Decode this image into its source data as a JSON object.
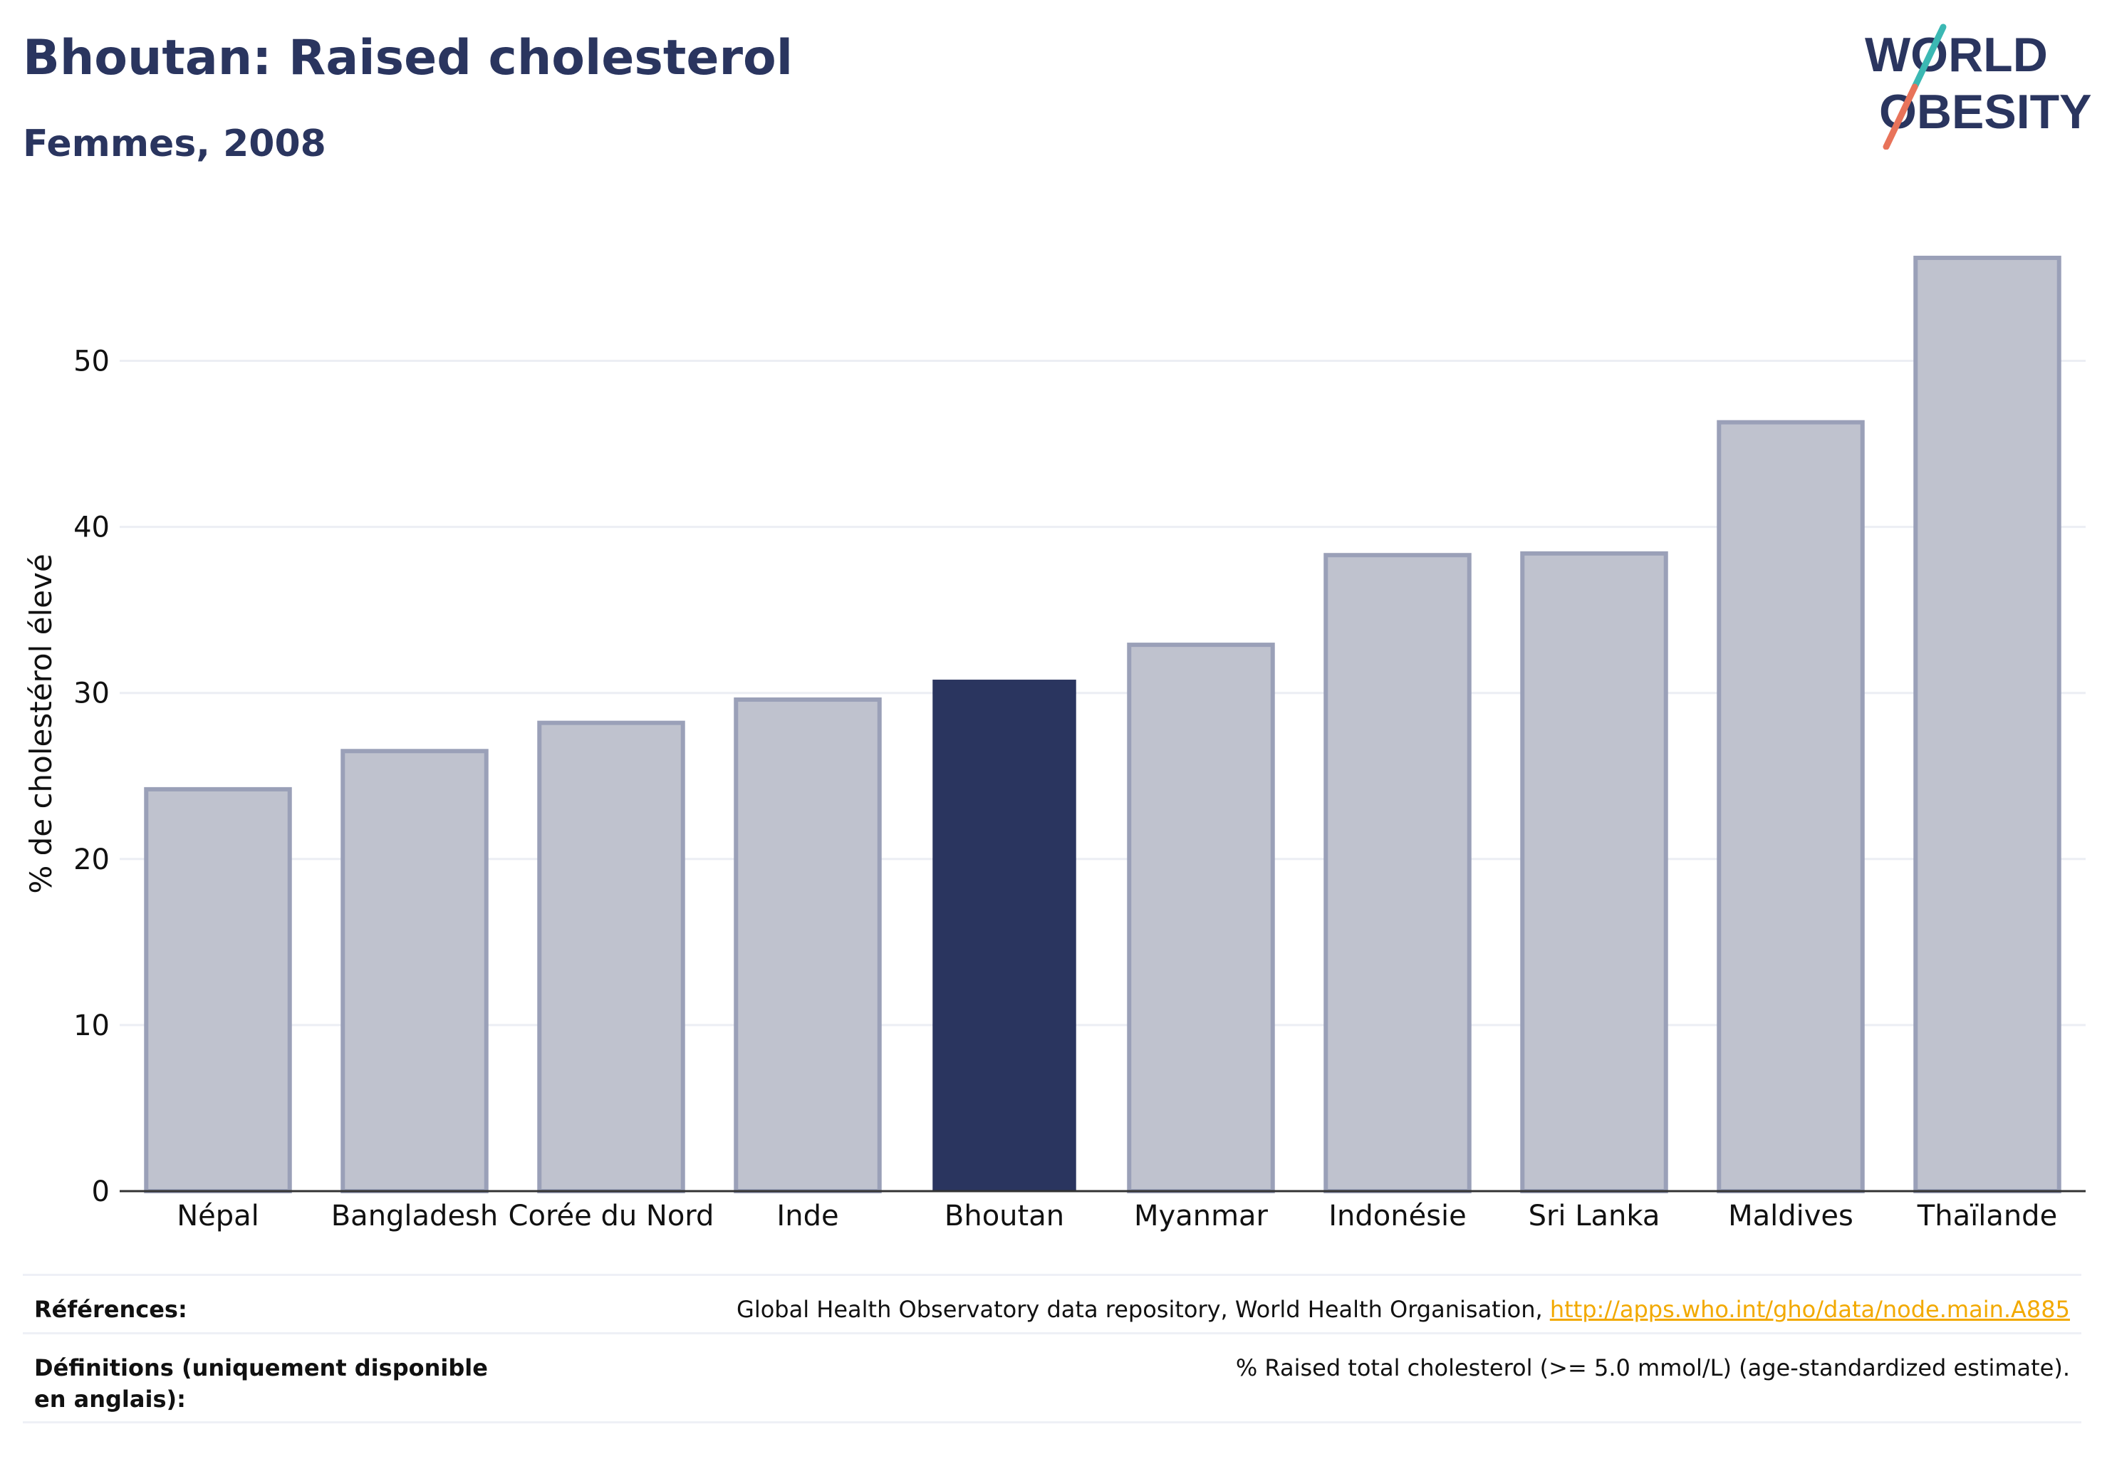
{
  "header": {
    "title": "Bhoutan: Raised cholesterol",
    "subtitle": "Femmes, 2008",
    "logo_line1": "WORLD",
    "logo_line2": "OBESITY"
  },
  "colors": {
    "navy": "#2a355f",
    "bar_fill": "#bfc2ce",
    "bar_stroke": "#9aa0b8",
    "highlight": "#2a355f",
    "logo_teal": "#3bb8b3",
    "logo_coral": "#e8735a",
    "link": "#f2a900"
  },
  "chart_data": {
    "type": "bar",
    "categories": [
      "Népal",
      "Bangladesh",
      "Corée du Nord",
      "Inde",
      "Bhoutan",
      "Myanmar",
      "Indonésie",
      "Sri Lanka",
      "Maldives",
      "Thaïlande"
    ],
    "values": [
      24.2,
      26.5,
      28.2,
      29.6,
      30.8,
      32.9,
      38.3,
      38.4,
      46.3,
      56.2
    ],
    "highlight": "Bhoutan",
    "ylabel": "% de cholestérol élevé",
    "xlabel": "",
    "ylim": [
      0,
      58
    ],
    "yticks": [
      0,
      10,
      20,
      30,
      40,
      50
    ],
    "grid": true
  },
  "footer": {
    "references_label": "Références:",
    "references_text": "Global Health Observatory data repository, World Health Organisation, ",
    "references_link": "http://apps.who.int/gho/data/node.main.A885",
    "definitions_label": "Définitions (uniquement disponible en anglais):",
    "definitions_text": "% Raised total cholesterol (>= 5.0 mmol/L) (age-standardized estimate)."
  }
}
